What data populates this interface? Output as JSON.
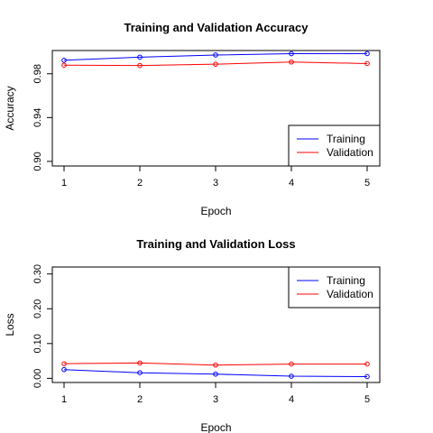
{
  "chart_data": [
    {
      "type": "line",
      "title": "Training and Validation Accuracy",
      "xlabel": "Epoch",
      "ylabel": "Accuracy",
      "x": [
        1,
        2,
        3,
        4,
        5
      ],
      "xticks": [
        "1",
        "2",
        "3",
        "4",
        "5"
      ],
      "yticks": [
        "0.90",
        "0.94",
        "0.98"
      ],
      "xlim": [
        1,
        5
      ],
      "ylim": [
        0.8958,
        1.0012
      ],
      "legend_position": "bottom-right",
      "series": [
        {
          "name": "Training",
          "color": "#0000ff",
          "values": [
            0.9923,
            0.9951,
            0.9971,
            0.9983,
            0.9984
          ]
        },
        {
          "name": "Validation",
          "color": "#ff0000",
          "values": [
            0.9878,
            0.9875,
            0.9887,
            0.9907,
            0.9893
          ]
        }
      ]
    },
    {
      "type": "line",
      "title": "Training and Validation Loss",
      "xlabel": "Epoch",
      "ylabel": "Loss",
      "x": [
        1,
        2,
        3,
        4,
        5
      ],
      "xticks": [
        "1",
        "2",
        "3",
        "4",
        "5"
      ],
      "yticks": [
        "0.00",
        "0.10",
        "0.20",
        "0.30"
      ],
      "xlim": [
        1,
        5
      ],
      "ylim": [
        -0.012,
        0.32
      ],
      "legend_position": "top-right",
      "series": [
        {
          "name": "Training",
          "color": "#0000ff",
          "values": [
            0.025,
            0.016,
            0.012,
            0.006,
            0.005
          ]
        },
        {
          "name": "Validation",
          "color": "#ff0000",
          "values": [
            0.042,
            0.044,
            0.038,
            0.041,
            0.041
          ]
        }
      ]
    }
  ]
}
